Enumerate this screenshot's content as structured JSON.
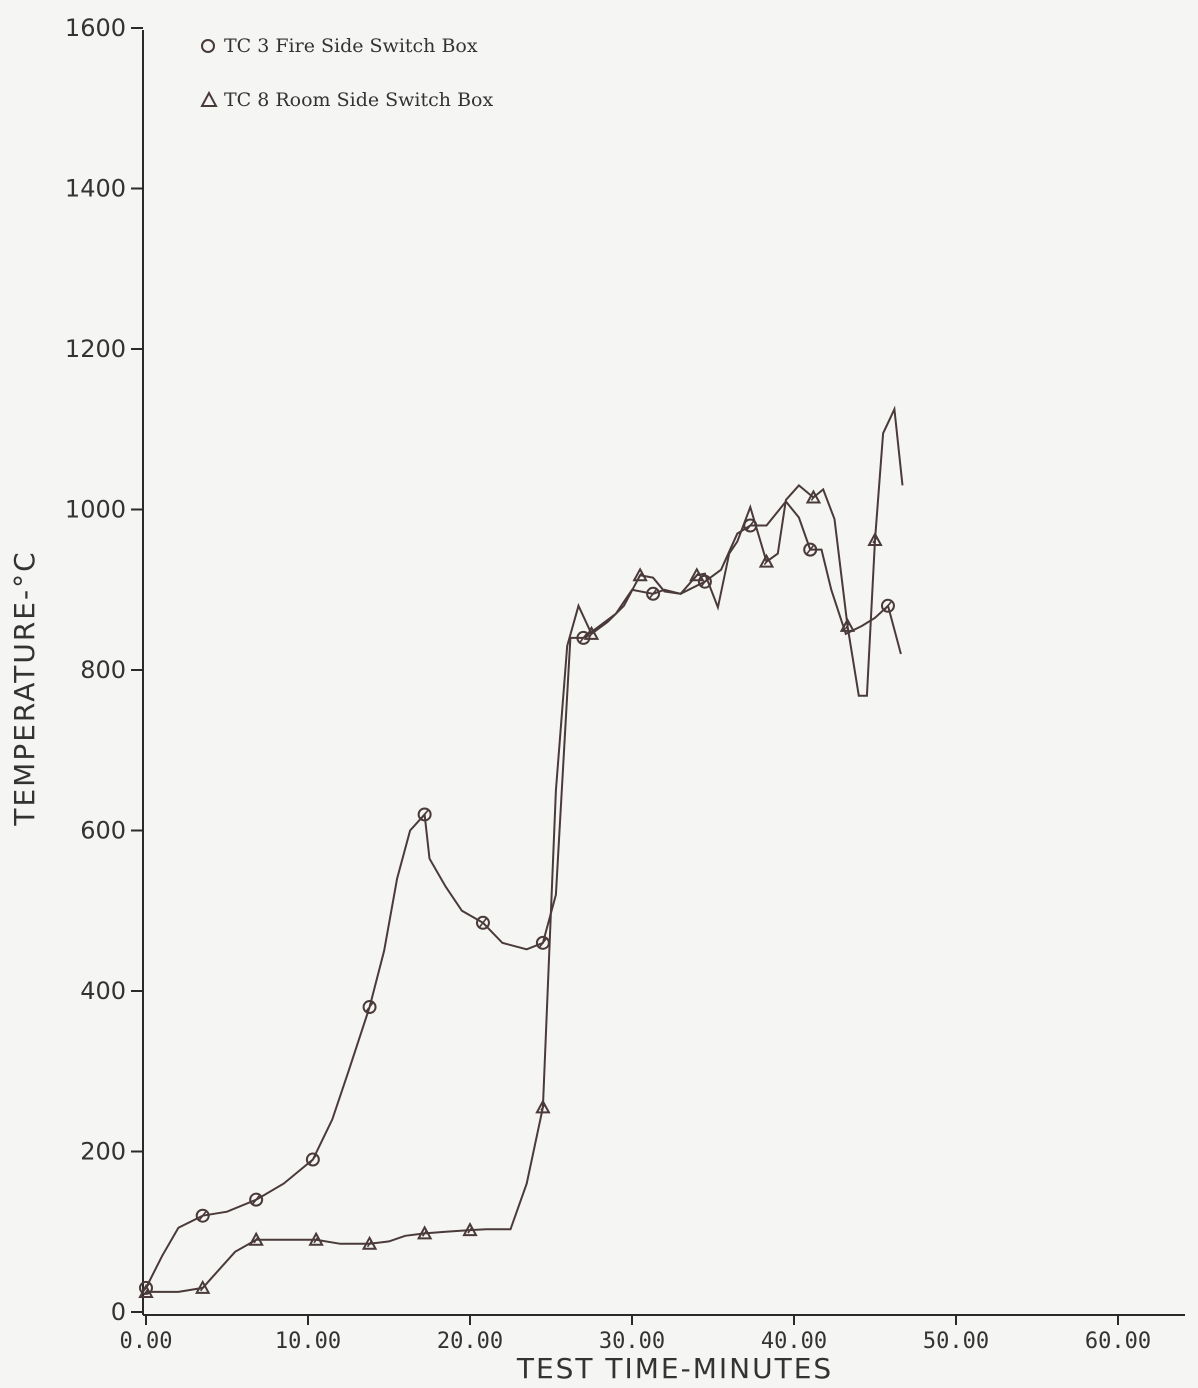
{
  "chart_data": {
    "type": "line",
    "xlabel": "TEST TIME-MINUTES",
    "ylabel": "TEMPERATURE-°C",
    "xlim": [
      0,
      64
    ],
    "ylim": [
      0,
      1600
    ],
    "xticks": [
      0,
      10,
      20,
      30,
      40,
      50,
      60
    ],
    "xtick_labels": [
      "0.00",
      "10.00",
      "20.00",
      "30.00",
      "40.00",
      "50.00",
      "60.00"
    ],
    "yticks": [
      0,
      200,
      400,
      600,
      800,
      1000,
      1200,
      1400,
      1600
    ],
    "ytick_labels": [
      "0",
      "200",
      "400",
      "600",
      "800",
      "1000",
      "1200",
      "1400",
      "1600"
    ],
    "grid": false,
    "legend_position": "top-left",
    "series": [
      {
        "name": "TC 3 Fire Side Switch Box",
        "marker": "circle",
        "x": [
          0,
          1,
          2,
          3.5,
          5,
          6.8,
          8.5,
          10.3,
          11.5,
          12.5,
          13.8,
          14.7,
          15.5,
          16.3,
          17.2,
          17.5,
          18.5,
          19.5,
          20.8,
          22,
          23.5,
          24.5,
          25.3,
          26.2,
          27,
          28,
          29,
          30,
          31.3,
          32,
          33,
          34.5,
          35.5,
          36.5,
          37.3,
          38.3,
          39.5,
          40.3,
          41,
          41.7,
          42.3,
          43.2,
          44.2,
          45,
          45.8,
          46.6
        ],
        "y": [
          30,
          70,
          105,
          120,
          125,
          140,
          160,
          190,
          240,
          300,
          380,
          450,
          540,
          600,
          620,
          565,
          530,
          500,
          485,
          460,
          452,
          460,
          520,
          840,
          840,
          855,
          870,
          900,
          895,
          900,
          895,
          910,
          925,
          970,
          980,
          980,
          1010,
          990,
          950,
          950,
          900,
          845,
          855,
          865,
          880,
          820
        ]
      },
      {
        "name": "TC 8 Room Side Switch Box",
        "marker": "triangle",
        "x": [
          0,
          2,
          3.5,
          5.5,
          6.8,
          8.5,
          10.5,
          12,
          13.8,
          15,
          16,
          17.2,
          18.5,
          20,
          21,
          22.5,
          23.5,
          24.5,
          25.3,
          26,
          26.7,
          27.5,
          28.5,
          29.5,
          30.5,
          31.3,
          32,
          33,
          34,
          34.5,
          35.3,
          36,
          36.5,
          37.3,
          38.3,
          39,
          39.5,
          40.3,
          41.2,
          41.8,
          42.5,
          43.3,
          44,
          44.5,
          45,
          45.5,
          46.2,
          46.7
        ],
        "y": [
          25,
          25,
          30,
          75,
          90,
          90,
          90,
          85,
          85,
          88,
          95,
          98,
          100,
          102,
          103,
          103,
          160,
          255,
          650,
          830,
          880,
          845,
          860,
          880,
          918,
          915,
          898,
          895,
          918,
          920,
          878,
          945,
          960,
          1003,
          935,
          945,
          1012,
          1030,
          1015,
          1025,
          988,
          855,
          768,
          768,
          962,
          1095,
          1125,
          1030
        ]
      }
    ]
  }
}
